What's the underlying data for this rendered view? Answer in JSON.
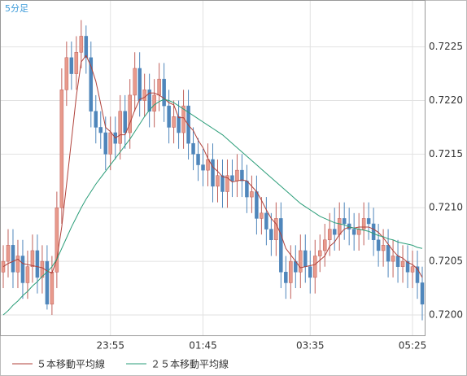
{
  "chart_data": {
    "type": "candlestick",
    "timeframe": "5分足",
    "up_color": "#e89a8c",
    "down_color": "#4f86bb",
    "open": [
      0.7204,
      0.7205,
      0.72065,
      0.7204,
      0.72055,
      0.7203,
      0.72045,
      0.7206,
      0.72035,
      0.7205,
      0.7201,
      0.7204,
      0.721,
      0.7221,
      0.7224,
      0.72225,
      0.72245,
      0.7226,
      0.7224,
      0.7219,
      0.72175,
      0.7217,
      0.7215,
      0.7217,
      0.7216,
      0.7219,
      0.7217,
      0.72205,
      0.7223,
      0.722,
      0.7221,
      0.7219,
      0.72205,
      0.7222,
      0.72195,
      0.72175,
      0.72185,
      0.7217,
      0.72195,
      0.7216,
      0.7215,
      0.7214,
      0.72135,
      0.72145,
      0.7212,
      0.7213,
      0.72115,
      0.7213,
      0.72125,
      0.72135,
      0.72125,
      0.7211,
      0.72115,
      0.7209,
      0.72095,
      0.7208,
      0.7207,
      0.7209,
      0.7204,
      0.7203,
      0.7205,
      0.7204,
      0.7206,
      0.72045,
      0.72035,
      0.72055,
      0.7206,
      0.7207,
      0.7208,
      0.72075,
      0.7209,
      0.72085,
      0.7208,
      0.72075,
      0.7208,
      0.7209,
      0.72085,
      0.7207,
      0.7206,
      0.72065,
      0.7205,
      0.72055,
      0.72045,
      0.7205,
      0.7204,
      0.72045,
      0.7203
    ],
    "high": [
      0.72065,
      0.7208,
      0.7208,
      0.7207,
      0.7207,
      0.7206,
      0.72075,
      0.72075,
      0.72065,
      0.72065,
      0.72055,
      0.72115,
      0.7223,
      0.72255,
      0.72255,
      0.7226,
      0.72275,
      0.7227,
      0.72255,
      0.72205,
      0.7219,
      0.72185,
      0.72185,
      0.72185,
      0.72205,
      0.72205,
      0.7222,
      0.72245,
      0.72245,
      0.72225,
      0.72225,
      0.7222,
      0.72235,
      0.72235,
      0.7221,
      0.722,
      0.722,
      0.7221,
      0.7221,
      0.72175,
      0.72165,
      0.72155,
      0.7216,
      0.7216,
      0.72145,
      0.72145,
      0.72145,
      0.72145,
      0.7215,
      0.7215,
      0.7214,
      0.7213,
      0.7213,
      0.7211,
      0.7211,
      0.72095,
      0.72105,
      0.72105,
      0.72055,
      0.72065,
      0.72065,
      0.72075,
      0.72075,
      0.7206,
      0.7207,
      0.72075,
      0.72085,
      0.72095,
      0.721,
      0.72105,
      0.72105,
      0.721,
      0.72095,
      0.72095,
      0.72105,
      0.72105,
      0.721,
      0.72085,
      0.7208,
      0.7208,
      0.7207,
      0.7207,
      0.72065,
      0.72065,
      0.7206,
      0.7206,
      0.72045
    ],
    "low": [
      0.72025,
      0.72035,
      0.72025,
      0.72025,
      0.72015,
      0.72015,
      0.7203,
      0.7202,
      0.7202,
      0.72005,
      0.72,
      0.72025,
      0.72085,
      0.72195,
      0.7221,
      0.7221,
      0.7223,
      0.72225,
      0.72175,
      0.7216,
      0.72155,
      0.72135,
      0.72135,
      0.72145,
      0.72145,
      0.72155,
      0.72155,
      0.7219,
      0.72185,
      0.72185,
      0.72175,
      0.72175,
      0.7219,
      0.7218,
      0.7216,
      0.7216,
      0.72155,
      0.72155,
      0.72145,
      0.72135,
      0.72125,
      0.7212,
      0.7212,
      0.72105,
      0.72105,
      0.721,
      0.721,
      0.7211,
      0.7211,
      0.7211,
      0.72095,
      0.72095,
      0.72075,
      0.72075,
      0.72065,
      0.72055,
      0.72055,
      0.72025,
      0.72015,
      0.72015,
      0.72025,
      0.72025,
      0.7203,
      0.7202,
      0.7202,
      0.7204,
      0.72045,
      0.72055,
      0.7206,
      0.7206,
      0.7207,
      0.72065,
      0.7206,
      0.7206,
      0.72065,
      0.7207,
      0.72055,
      0.72045,
      0.72045,
      0.72035,
      0.72035,
      0.7203,
      0.7203,
      0.72025,
      0.72025,
      0.72015,
      0.71995
    ],
    "close": [
      0.7205,
      0.72065,
      0.7204,
      0.72055,
      0.7203,
      0.72045,
      0.7206,
      0.72035,
      0.7205,
      0.7201,
      0.7204,
      0.721,
      0.7221,
      0.7224,
      0.72225,
      0.72245,
      0.7226,
      0.7224,
      0.7219,
      0.72175,
      0.7217,
      0.7215,
      0.7217,
      0.7216,
      0.7219,
      0.7217,
      0.72205,
      0.7223,
      0.722,
      0.7221,
      0.7219,
      0.72205,
      0.7222,
      0.72195,
      0.72175,
      0.72185,
      0.7217,
      0.72195,
      0.7216,
      0.7215,
      0.7214,
      0.72135,
      0.72145,
      0.7212,
      0.7213,
      0.72115,
      0.7213,
      0.72125,
      0.72135,
      0.72125,
      0.7211,
      0.72115,
      0.7209,
      0.72095,
      0.7208,
      0.7207,
      0.7209,
      0.7204,
      0.7203,
      0.7205,
      0.7204,
      0.7206,
      0.72045,
      0.72035,
      0.72055,
      0.7206,
      0.7207,
      0.7208,
      0.72075,
      0.7209,
      0.72085,
      0.7208,
      0.72075,
      0.7208,
      0.7209,
      0.72085,
      0.7207,
      0.7206,
      0.72065,
      0.7205,
      0.72055,
      0.72045,
      0.7205,
      0.7204,
      0.72045,
      0.7203,
      0.7201
    ],
    "series": [
      {
        "name": "５本移動平均線",
        "color": "#b0413a",
        "values": [
          0.72045,
          0.72048,
          0.7205,
          0.72052,
          0.72048,
          0.72047,
          0.72046,
          0.72045,
          0.72044,
          0.72041,
          0.72039,
          0.72052,
          0.72082,
          0.72122,
          0.72163,
          0.72204,
          0.72236,
          0.72242,
          0.72232,
          0.72218,
          0.72197,
          0.72175,
          0.72171,
          0.72165,
          0.72168,
          0.72168,
          0.72179,
          0.72191,
          0.72201,
          0.72203,
          0.72207,
          0.72207,
          0.72205,
          0.72202,
          0.72198,
          0.72196,
          0.72184,
          0.72184,
          0.72177,
          0.72172,
          0.72163,
          0.72156,
          0.72146,
          0.72138,
          0.72134,
          0.72129,
          0.72128,
          0.72124,
          0.72125,
          0.72126,
          0.72125,
          0.7212,
          0.72115,
          0.72107,
          0.72098,
          0.7209,
          0.72085,
          0.72075,
          0.72062,
          0.72056,
          0.7205,
          0.72044,
          0.72045,
          0.72046,
          0.72047,
          0.72051,
          0.72055,
          0.72064,
          0.72068,
          0.72075,
          0.7208,
          0.72082,
          0.72081,
          0.72082,
          0.72082,
          0.72082,
          0.7208,
          0.72077,
          0.72072,
          0.72066,
          0.7206,
          0.72055,
          0.72053,
          0.72049,
          0.72047,
          0.72043,
          0.72035
        ]
      },
      {
        "name": "２５本移動平均線",
        "color": "#2a9d78",
        "values": [
          0.72,
          0.72004,
          0.72009,
          0.72013,
          0.72018,
          0.72022,
          0.72027,
          0.72031,
          0.72036,
          0.7204,
          0.72045,
          0.72052,
          0.72062,
          0.72072,
          0.72082,
          0.72091,
          0.721,
          0.72108,
          0.72115,
          0.72122,
          0.72128,
          0.72134,
          0.7214,
          0.72146,
          0.72152,
          0.72158,
          0.72164,
          0.72171,
          0.72178,
          0.72185,
          0.72191,
          0.72196,
          0.72199,
          0.72201,
          0.722,
          0.72198,
          0.72195,
          0.72192,
          0.72189,
          0.72186,
          0.72183,
          0.7218,
          0.72177,
          0.72174,
          0.72171,
          0.72168,
          0.72164,
          0.7216,
          0.72156,
          0.72152,
          0.72148,
          0.72144,
          0.7214,
          0.72136,
          0.72132,
          0.72128,
          0.72124,
          0.7212,
          0.72116,
          0.72112,
          0.72108,
          0.72104,
          0.72101,
          0.72098,
          0.72095,
          0.72092,
          0.7209,
          0.72088,
          0.72086,
          0.72085,
          0.72084,
          0.72082,
          0.72081,
          0.7208,
          0.72079,
          0.72078,
          0.72076,
          0.72074,
          0.72073,
          0.72071,
          0.7207,
          0.72068,
          0.72067,
          0.72066,
          0.72065,
          0.72063,
          0.72062
        ]
      }
    ],
    "xlim": [
      -0.5,
      86.5
    ],
    "xticks": [
      {
        "value": 22,
        "label": "23:55"
      },
      {
        "value": 41,
        "label": "01:45"
      },
      {
        "value": 63,
        "label": "03:35"
      },
      {
        "value": 84,
        "label": "05:25"
      }
    ],
    "ylim": [
      0.71981,
      0.72293
    ],
    "yticks": [
      {
        "value": 0.72,
        "label": "0.7200"
      },
      0.7205,
      {
        "value": 0.721,
        "label": "0.7210"
      },
      0.7215,
      {
        "value": 0.722,
        "label": "0.7220"
      },
      0.7225
    ],
    "grid": true
  }
}
